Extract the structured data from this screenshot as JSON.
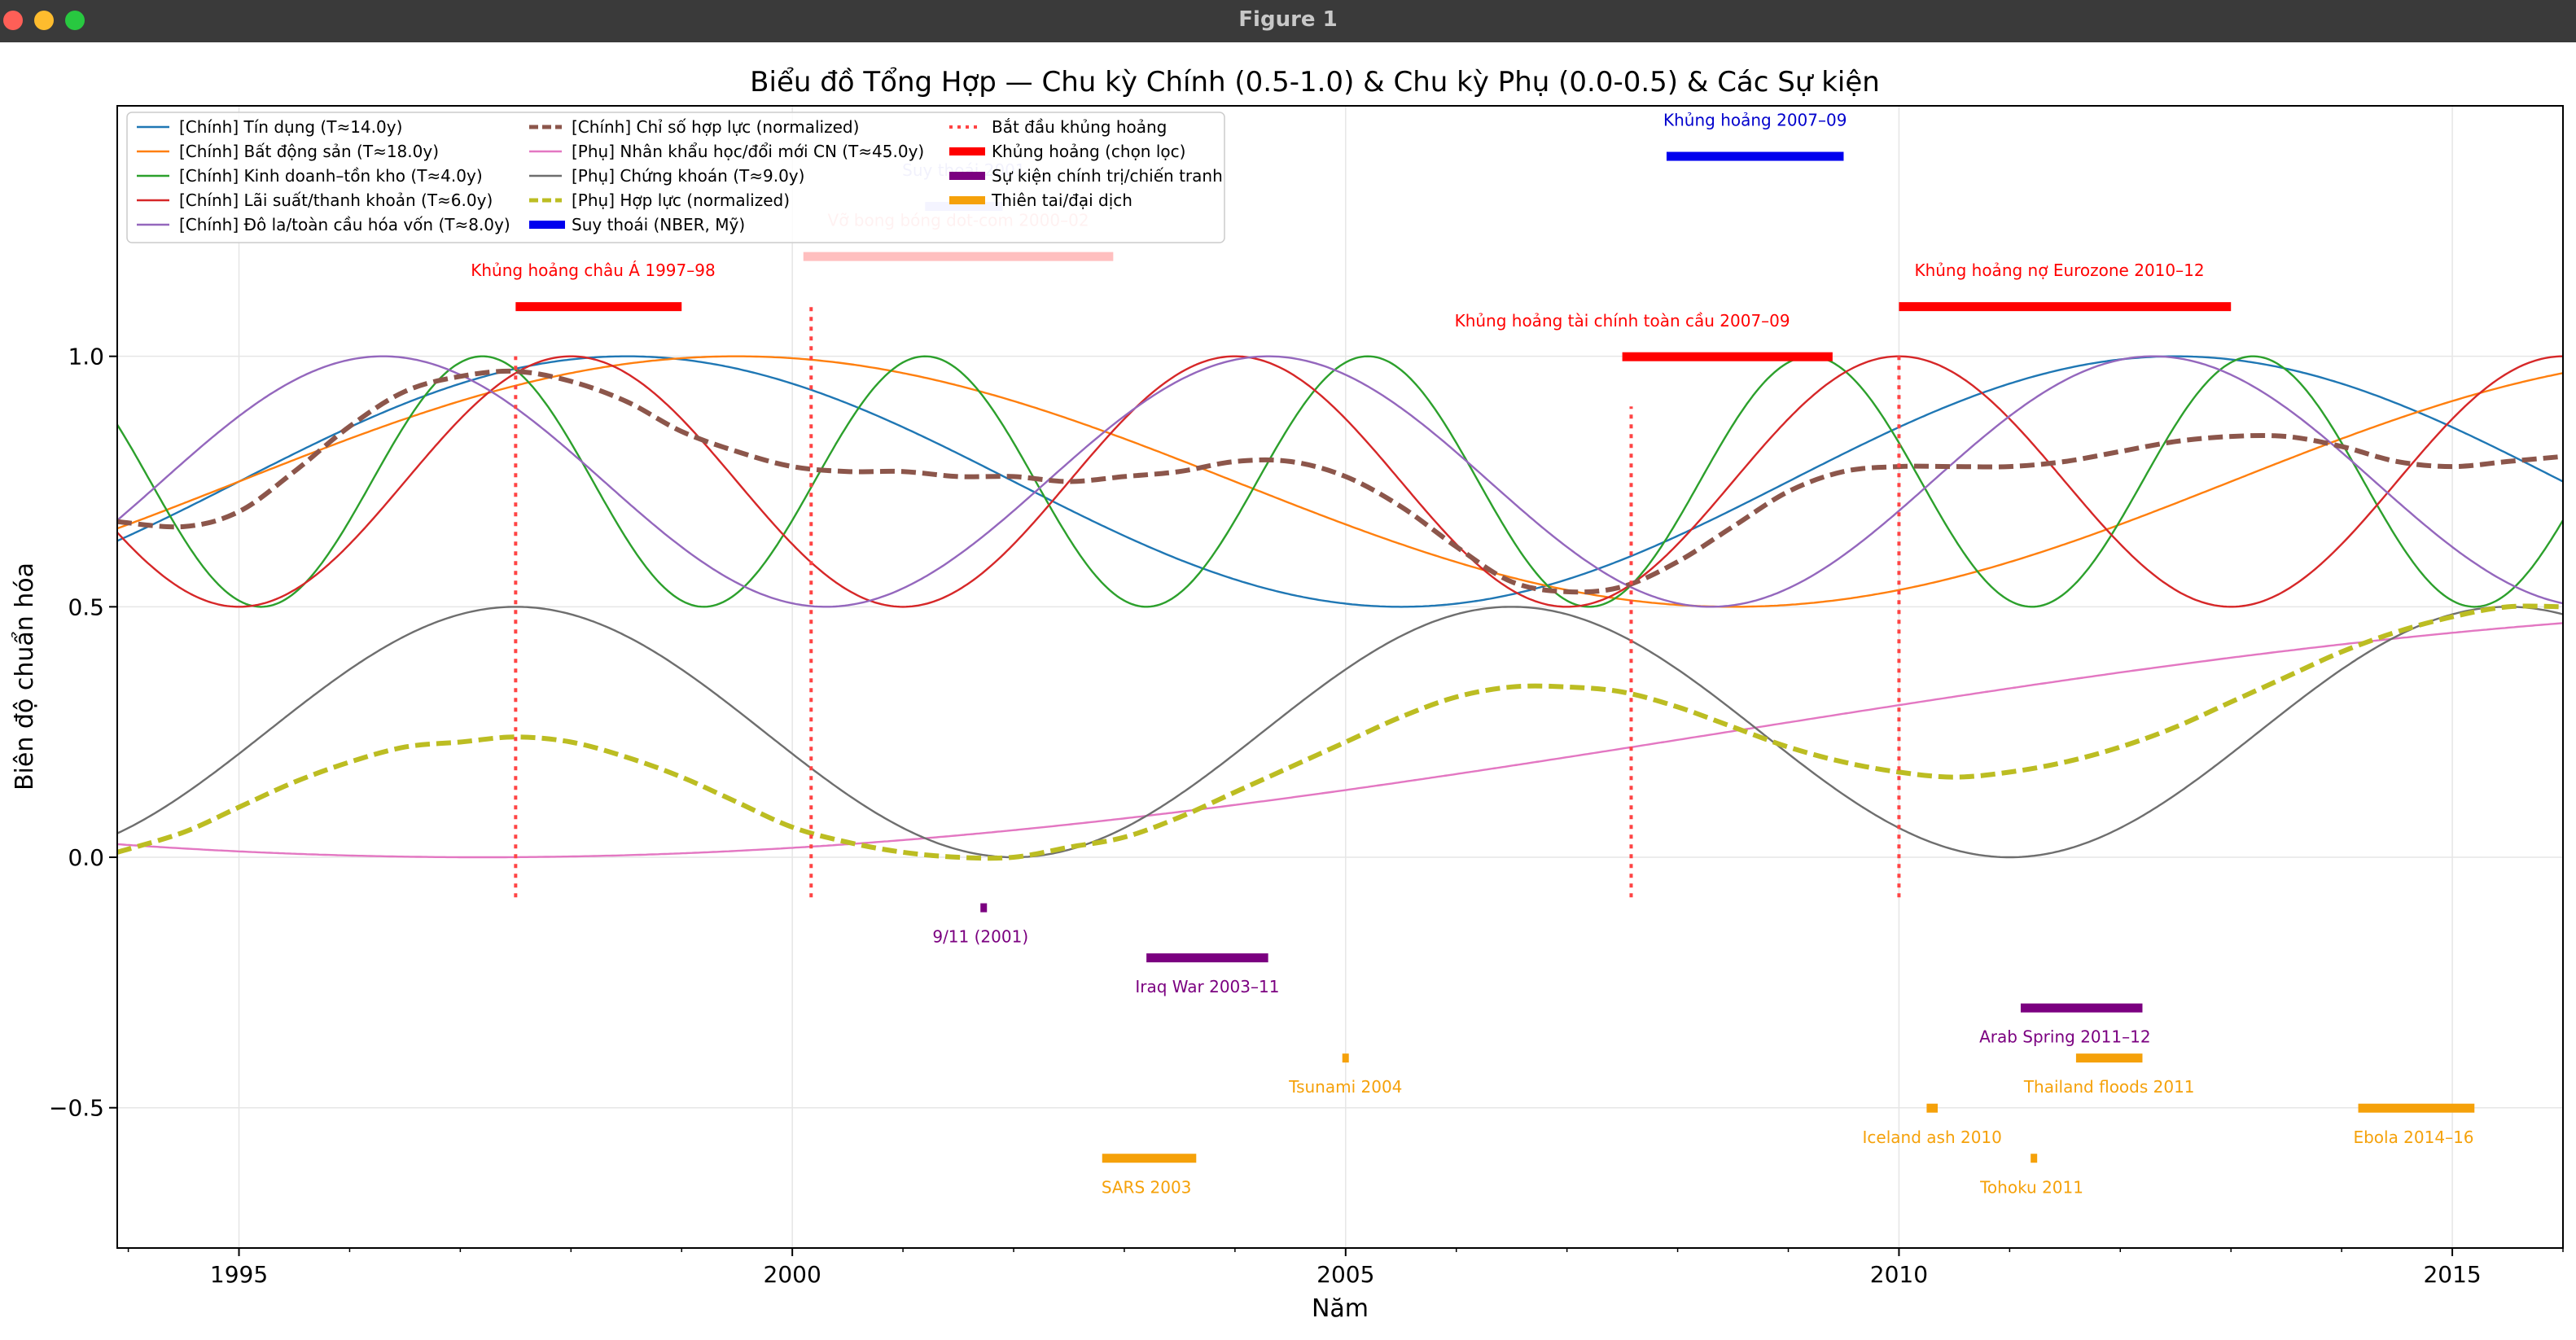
{
  "window": {
    "title": "Figure 1"
  },
  "chart_data": {
    "type": "line",
    "title": "Biểu đồ Tổng Hợp — Chu kỳ Chính (0.5-1.0) & Chu kỳ Phụ (0.0-0.5) & Các Sự kiện",
    "xlabel": "Năm",
    "ylabel": "Biên độ chuẩn hóa",
    "xlim": [
      1993.9,
      2016.0
    ],
    "ylim": [
      -0.78,
      1.5
    ],
    "xticks": [
      1995,
      2000,
      2005,
      2010,
      2015
    ],
    "yticks": [
      -0.5,
      0.0,
      0.5,
      1.0
    ],
    "xtick_labels": [
      "1995",
      "2000",
      "2005",
      "2010",
      "2015"
    ],
    "ytick_labels": [
      "−0.5",
      "0.0",
      "0.5",
      "1.0"
    ],
    "grid": true,
    "legend_position": "top-left",
    "series": [
      {
        "name": "[Chính] Tín dụng (T≈14.0y)",
        "color": "#1f77b4",
        "style": "solid",
        "kind": "cos",
        "base": 0.75,
        "amp": 0.25,
        "period": 14.0,
        "peak": 1998.5
      },
      {
        "name": "[Chính] Bất động sản (T≈18.0y)",
        "color": "#ff7f0e",
        "style": "solid",
        "kind": "cos",
        "base": 0.75,
        "amp": 0.25,
        "period": 18.0,
        "peak": 1999.5
      },
      {
        "name": "[Chính] Kinh doanh–tồn kho (T≈4.0y)",
        "color": "#2ca02c",
        "style": "solid",
        "kind": "cos",
        "base": 0.75,
        "amp": 0.25,
        "period": 4.0,
        "peak": 1997.2
      },
      {
        "name": "[Chính] Lãi suất/thanh khoản (T≈6.0y)",
        "color": "#d62728",
        "style": "solid",
        "kind": "cos",
        "base": 0.75,
        "amp": 0.25,
        "period": 6.0,
        "peak": 1998.0
      },
      {
        "name": "[Chính] Đô la/toàn cầu hóa vốn (T≈8.0y)",
        "color": "#9467bd",
        "style": "solid",
        "kind": "cos",
        "base": 0.75,
        "amp": 0.25,
        "period": 8.0,
        "peak": 1996.3
      },
      {
        "name": "[Chính] Chỉ số hợp lực (normalized)",
        "color": "#8c564b",
        "style": "dashed-thick",
        "kind": "points",
        "x": [
          1993.9,
          1994.5,
          1995.0,
          1995.5,
          1996.0,
          1996.5,
          1997.0,
          1997.5,
          1998.0,
          1998.5,
          1999.0,
          1999.5,
          2000.0,
          2000.5,
          2001.0,
          2001.5,
          2002.0,
          2002.5,
          2003.0,
          2003.5,
          2004.0,
          2004.5,
          2005.0,
          2005.5,
          2006.0,
          2006.5,
          2007.0,
          2007.5,
          2008.0,
          2008.5,
          2009.0,
          2009.5,
          2010.0,
          2010.5,
          2011.0,
          2011.5,
          2012.0,
          2012.5,
          2013.0,
          2013.5,
          2014.0,
          2014.5,
          2015.0,
          2015.5,
          2016.0
        ],
        "y": [
          0.67,
          0.66,
          0.69,
          0.77,
          0.86,
          0.93,
          0.96,
          0.97,
          0.95,
          0.91,
          0.85,
          0.81,
          0.78,
          0.77,
          0.77,
          0.76,
          0.76,
          0.75,
          0.76,
          0.77,
          0.79,
          0.79,
          0.76,
          0.7,
          0.62,
          0.55,
          0.53,
          0.54,
          0.59,
          0.66,
          0.73,
          0.77,
          0.78,
          0.78,
          0.78,
          0.79,
          0.81,
          0.83,
          0.84,
          0.84,
          0.82,
          0.79,
          0.78,
          0.79,
          0.8
        ]
      },
      {
        "name": "[Phụ] Nhân khẩu học/đổi mới CN (T≈45.0y)",
        "color": "#e377c2",
        "style": "solid",
        "kind": "cos",
        "base": 0.25,
        "amp": 0.25,
        "period": 45.0,
        "peak": 2019.7
      },
      {
        "name": "[Phụ] Chứng khoán (T≈9.0y)",
        "color": "#6e6e6e",
        "style": "solid",
        "kind": "cos",
        "base": 0.25,
        "amp": 0.25,
        "period": 9.0,
        "peak": 1997.5
      },
      {
        "name": "[Phụ] Hợp lực (normalized)",
        "color": "#bcbd22",
        "style": "dashed-thick",
        "kind": "points",
        "x": [
          1993.9,
          1994.5,
          1995.0,
          1995.5,
          1996.0,
          1996.5,
          1997.0,
          1997.5,
          1998.0,
          1998.5,
          1999.0,
          1999.5,
          2000.0,
          2000.5,
          2001.0,
          2001.5,
          2002.0,
          2002.5,
          2003.0,
          2003.5,
          2004.0,
          2004.5,
          2005.0,
          2005.5,
          2006.0,
          2006.5,
          2007.0,
          2007.5,
          2008.0,
          2008.5,
          2009.0,
          2009.5,
          2010.0,
          2010.5,
          2011.0,
          2011.5,
          2012.0,
          2012.5,
          2013.0,
          2013.5,
          2014.0,
          2014.5,
          2015.0,
          2015.5,
          2016.0
        ],
        "y": [
          0.01,
          0.05,
          0.1,
          0.15,
          0.19,
          0.22,
          0.23,
          0.24,
          0.23,
          0.2,
          0.16,
          0.11,
          0.06,
          0.03,
          0.01,
          0.0,
          0.0,
          0.02,
          0.04,
          0.08,
          0.13,
          0.18,
          0.23,
          0.28,
          0.32,
          0.34,
          0.34,
          0.33,
          0.3,
          0.26,
          0.22,
          0.19,
          0.17,
          0.16,
          0.17,
          0.19,
          0.22,
          0.26,
          0.31,
          0.36,
          0.41,
          0.45,
          0.48,
          0.5,
          0.5
        ]
      }
    ],
    "crisis_start_lines": {
      "label": "Bắt đầu khủng hoảng",
      "color": "#ff4444",
      "items": [
        {
          "x": 1997.5,
          "y0": -0.08,
          "y1": 1.0
        },
        {
          "x": 2000.17,
          "y0": -0.08,
          "y1": 1.1
        },
        {
          "x": 2007.58,
          "y0": -0.08,
          "y1": 0.9
        },
        {
          "x": 2010.0,
          "y0": -0.08,
          "y1": 1.0
        }
      ]
    },
    "event_groups": [
      {
        "label": "Khủng hoảng (chọn lọc)",
        "color": "#ff0000",
        "text_color": "#ff0000",
        "items": [
          {
            "name": "Khủng hoảng châu Á 1997–98",
            "x0": 1997.5,
            "x1": 1999.0,
            "y": 1.1,
            "label_y": 1.16,
            "label_x": 1998.2
          },
          {
            "name": "Vỡ bong bóng dot-com 2000–02",
            "x0": 2000.1,
            "x1": 2002.9,
            "y": 1.2,
            "label_y": 1.26,
            "label_x": 2001.5,
            "faded": true
          },
          {
            "name": "Khủng hoảng tài chính toàn cầu 2007–09",
            "x0": 2007.5,
            "x1": 2009.4,
            "y": 1.0,
            "label_y": 1.06,
            "label_x": 2007.5
          },
          {
            "name": "Khủng hoảng nợ Eurozone 2010–12",
            "x0": 2010.0,
            "x1": 2013.0,
            "y": 1.1,
            "label_y": 1.16,
            "label_x": 2011.45
          }
        ]
      },
      {
        "label": "Suy thoái (NBER, Mỹ)",
        "color": "#0000ee",
        "text_color": "#0000cc",
        "items": [
          {
            "name": "Khủng hoảng 2007–09",
            "x0": 2007.9,
            "x1": 2009.5,
            "y": 1.4,
            "label_y": 1.46,
            "label_x": 2008.7
          },
          {
            "name": "Suy thoái 2001",
            "x0": 2001.2,
            "x1": 2001.9,
            "y": 1.3,
            "label_y": 1.36,
            "label_x": 2001.55,
            "faded": true
          }
        ]
      },
      {
        "label": "Sự kiện chính trị/chiến tranh",
        "color": "#7b0080",
        "text_color": "#7b0080",
        "items": [
          {
            "name": "9/11 (2001)",
            "x0": 2001.7,
            "x1": 2001.72,
            "y": -0.1,
            "label_y": -0.17,
            "label_x": 2001.7
          },
          {
            "name": "Iraq War 2003–11",
            "x0": 2003.2,
            "x1": 2004.3,
            "y": -0.2,
            "label_y": -0.27,
            "label_x": 2003.75
          },
          {
            "name": "Arab Spring 2011–12",
            "x0": 2011.1,
            "x1": 2012.2,
            "y": -0.3,
            "label_y": -0.37,
            "label_x": 2011.5
          }
        ]
      },
      {
        "label": "Thiên tai/đại dịch",
        "color": "#f5a10a",
        "text_color": "#f5a10a",
        "items": [
          {
            "name": "SARS 2003",
            "x0": 2002.8,
            "x1": 2003.65,
            "y": -0.6,
            "label_y": -0.67,
            "label_x": 2003.2
          },
          {
            "name": "Tsunami 2004",
            "x0": 2004.97,
            "x1": 2004.99,
            "y": -0.4,
            "label_y": -0.47,
            "label_x": 2005.0
          },
          {
            "name": "Iceland ash 2010",
            "x0": 2010.25,
            "x1": 2010.35,
            "y": -0.5,
            "label_y": -0.57,
            "label_x": 2010.3
          },
          {
            "name": "Tohoku 2011",
            "x0": 2011.19,
            "x1": 2011.21,
            "y": -0.6,
            "label_y": -0.67,
            "label_x": 2011.2
          },
          {
            "name": "Thailand floods 2011",
            "x0": 2011.6,
            "x1": 2012.2,
            "y": -0.4,
            "label_y": -0.47,
            "label_x": 2011.9
          },
          {
            "name": "Ebola 2014–16",
            "x0": 2014.15,
            "x1": 2015.2,
            "y": -0.5,
            "label_y": -0.57,
            "label_x": 2014.65
          }
        ]
      }
    ],
    "legend": {
      "columns": [
        [
          {
            "label": "[Chính] Tín dụng (T≈14.0y)",
            "color": "#1f77b4",
            "swatch": "line"
          },
          {
            "label": "[Chính] Bất động sản (T≈18.0y)",
            "color": "#ff7f0e",
            "swatch": "line"
          },
          {
            "label": "[Chính] Kinh doanh–tồn kho (T≈4.0y)",
            "color": "#2ca02c",
            "swatch": "line"
          },
          {
            "label": "[Chính] Lãi suất/thanh khoản (T≈6.0y)",
            "color": "#d62728",
            "swatch": "line"
          },
          {
            "label": "[Chính] Đô la/toàn cầu hóa vốn (T≈8.0y)",
            "color": "#9467bd",
            "swatch": "line"
          }
        ],
        [
          {
            "label": "[Chính] Chỉ số hợp lực (normalized)",
            "color": "#8c564b",
            "swatch": "dashed"
          },
          {
            "label": "[Phụ] Nhân khẩu học/đổi mới CN (T≈45.0y)",
            "color": "#e377c2",
            "swatch": "line"
          },
          {
            "label": "[Phụ] Chứng khoán (T≈9.0y)",
            "color": "#6e6e6e",
            "swatch": "line"
          },
          {
            "label": "[Phụ] Hợp lực (normalized)",
            "color": "#bcbd22",
            "swatch": "dashed"
          },
          {
            "label": "Suy thoái (NBER, Mỹ)",
            "color": "#0000ee",
            "swatch": "bar"
          }
        ],
        [
          {
            "label": "Bắt đầu khủng hoảng",
            "color": "#ff4444",
            "swatch": "dotted"
          },
          {
            "label": "Khủng hoảng (chọn lọc)",
            "color": "#ff0000",
            "swatch": "bar"
          },
          {
            "label": "Sự kiện chính trị/chiến tranh",
            "color": "#7b0080",
            "swatch": "bar"
          },
          {
            "label": "Thiên tai/đại dịch",
            "color": "#f5a10a",
            "swatch": "bar"
          }
        ]
      ]
    }
  }
}
